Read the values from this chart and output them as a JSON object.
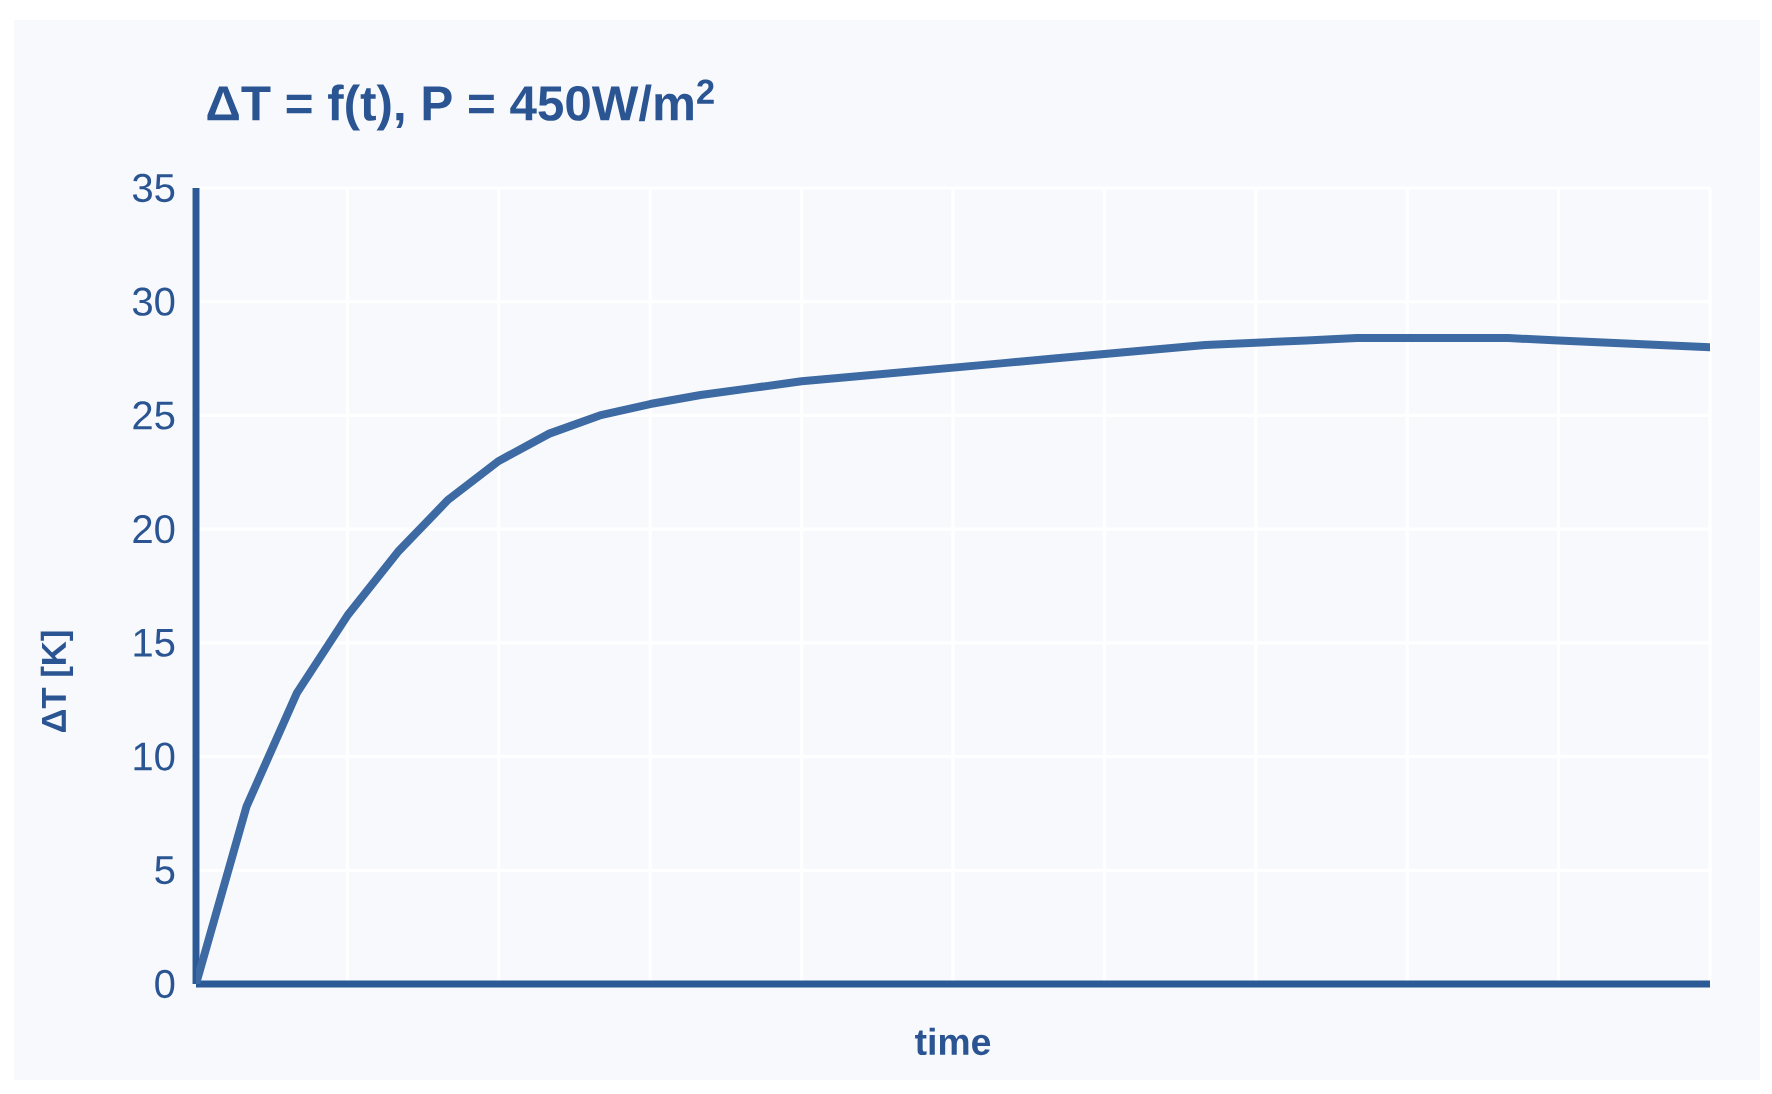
{
  "chart_data": {
    "type": "line",
    "title": "ΔT = f(t),  P = 450W/m$^{2}$",
    "xlabel": "time",
    "ylabel": "ΔT [K]",
    "categories": [
      null,
      null,
      null,
      null,
      null,
      null,
      null,
      null,
      null,
      null,
      null,
      null,
      null,
      null,
      null,
      null,
      null,
      null,
      null,
      null,
      null,
      null,
      null,
      null,
      null,
      null,
      null,
      null,
      null,
      null,
      null
    ],
    "series": [
      {
        "color": "#3d6aa3",
        "values": [
          0,
          7.8,
          12.8,
          16.2,
          19.0,
          21.3,
          23.0,
          24.2,
          25.0,
          25.5,
          25.9,
          26.2,
          26.5,
          26.7,
          26.9,
          27.1,
          27.3,
          27.5,
          27.7,
          27.9,
          28.1,
          28.2,
          28.3,
          28.4,
          28.4,
          28.4,
          28.4,
          28.3,
          28.2,
          28.1,
          28.0
        ]
      }
    ],
    "ylim": [
      0,
      35
    ],
    "yticks": [
      0,
      5,
      10,
      15,
      20,
      25,
      30,
      35
    ],
    "grid": true,
    "marker": "none",
    "line_style": "solid"
  }
}
